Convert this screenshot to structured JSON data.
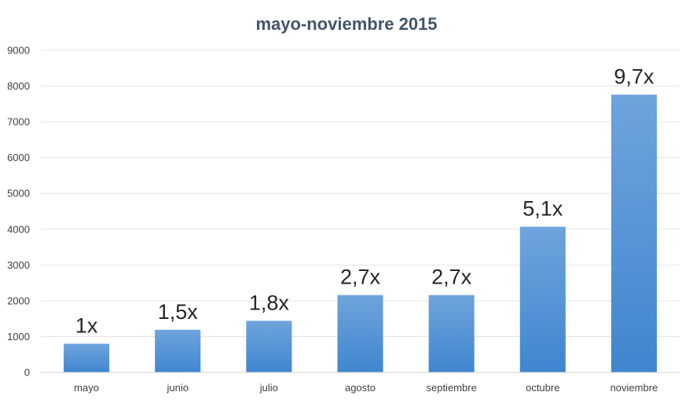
{
  "chart_data": {
    "type": "bar",
    "title": "mayo-noviembre 2015",
    "xlabel": "",
    "ylabel": "",
    "categories": [
      "mayo",
      "junio",
      "julio",
      "agosto",
      "septiembre",
      "octubre",
      "noviembre"
    ],
    "values": [
      800,
      1190,
      1440,
      2160,
      2160,
      4070,
      7760
    ],
    "data_labels": [
      "1x",
      "1,5x",
      "1,8x",
      "2,7x",
      "2,7x",
      "5,1x",
      "9,7x"
    ],
    "yticks": [
      0,
      1000,
      2000,
      3000,
      4000,
      5000,
      6000,
      7000,
      8000,
      9000
    ],
    "ylim": [
      0,
      9000
    ],
    "grid": true,
    "legend": "none",
    "colors": {
      "bar_top": "#6fa4dc",
      "bar_bottom": "#3f86cf"
    }
  }
}
